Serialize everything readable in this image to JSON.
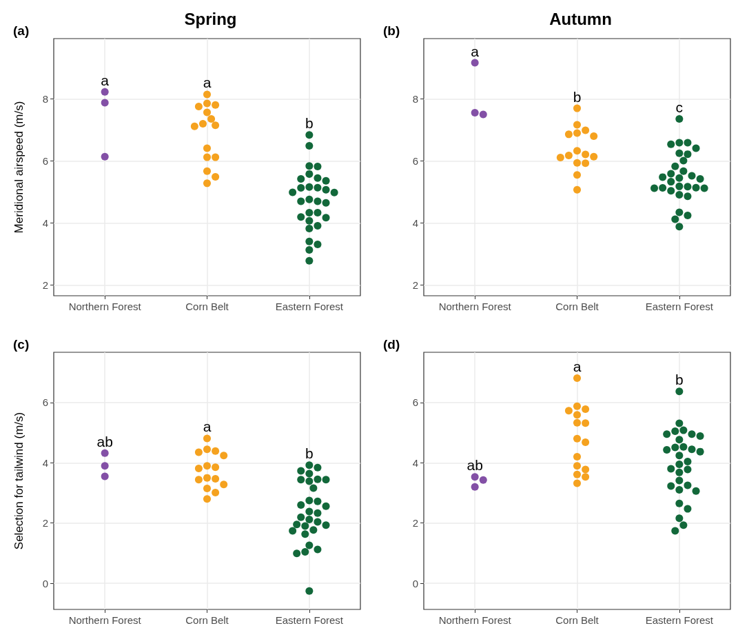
{
  "chart_data": [
    {
      "type": "scatter",
      "title": "Spring",
      "subtitle": "(a)",
      "ylabel": "Meridional airspeed (m/s)",
      "categories": [
        "Northern Forest",
        "Corn Belt",
        "Eastern Forest"
      ],
      "ylim": [
        1.65,
        9.95
      ],
      "yticks": [
        2,
        4,
        6,
        8
      ],
      "grid": true,
      "marker": "circle",
      "series": [
        {
          "color": "#8350a6",
          "x": [
            "Northern Forest",
            "Northern Forest",
            "Northern Forest"
          ],
          "values": [
            8.23,
            7.88,
            6.14
          ]
        },
        {
          "color": "#f5a21f",
          "x": [
            "Corn Belt",
            "Corn Belt",
            "Corn Belt",
            "Corn Belt",
            "Corn Belt",
            "Corn Belt",
            "Corn Belt",
            "Corn Belt",
            "Corn Belt",
            "Corn Belt",
            "Corn Belt",
            "Corn Belt",
            "Corn Belt",
            "Corn Belt",
            "Corn Belt"
          ],
          "values": [
            8.15,
            7.86,
            7.81,
            7.76,
            7.57,
            7.36,
            7.2,
            7.12,
            7.15,
            6.41,
            6.12,
            6.12,
            5.67,
            5.49,
            5.28
          ]
        },
        {
          "color": "#12683a",
          "x": [
            "Eastern Forest",
            "Eastern Forest",
            "Eastern Forest",
            "Eastern Forest",
            "Eastern Forest",
            "Eastern Forest",
            "Eastern Forest",
            "Eastern Forest",
            "Eastern Forest",
            "Eastern Forest",
            "Eastern Forest",
            "Eastern Forest",
            "Eastern Forest",
            "Eastern Forest",
            "Eastern Forest",
            "Eastern Forest",
            "Eastern Forest",
            "Eastern Forest",
            "Eastern Forest",
            "Eastern Forest",
            "Eastern Forest",
            "Eastern Forest",
            "Eastern Forest",
            "Eastern Forest",
            "Eastern Forest",
            "Eastern Forest",
            "Eastern Forest",
            "Eastern Forest",
            "Eastern Forest"
          ],
          "values": [
            6.84,
            6.49,
            5.82,
            5.84,
            5.58,
            5.45,
            5.36,
            5.42,
            5.16,
            5.13,
            5.07,
            4.98,
            4.99,
            5.14,
            4.7,
            4.65,
            4.7,
            4.76,
            4.33,
            4.33,
            4.07,
            4.17,
            4.19,
            3.82,
            3.91,
            3.4,
            3.31,
            3.13,
            2.78
          ]
        }
      ],
      "annotations": [
        "a",
        "a",
        "b"
      ]
    },
    {
      "type": "scatter",
      "title": "Autumn",
      "subtitle": "(b)",
      "categories": [
        "Northern Forest",
        "Corn Belt",
        "Eastern Forest"
      ],
      "ylim": [
        1.65,
        9.95
      ],
      "yticks": [
        2,
        4,
        6,
        8
      ],
      "grid": true,
      "marker": "circle",
      "series": [
        {
          "color": "#8350a6",
          "x": [
            "Northern Forest",
            "Northern Forest",
            "Northern Forest"
          ],
          "values": [
            9.17,
            7.5,
            7.56
          ]
        },
        {
          "color": "#f5a21f",
          "x": [
            "Corn Belt",
            "Corn Belt",
            "Corn Belt",
            "Corn Belt",
            "Corn Belt",
            "Corn Belt",
            "Corn Belt",
            "Corn Belt",
            "Corn Belt",
            "Corn Belt",
            "Corn Belt",
            "Corn Belt",
            "Corn Belt",
            "Corn Belt",
            "Corn Belt"
          ],
          "values": [
            7.7,
            7.17,
            6.9,
            6.8,
            6.86,
            6.99,
            6.18,
            6.11,
            6.21,
            6.14,
            6.33,
            5.93,
            5.94,
            5.55,
            5.07
          ]
        },
        {
          "color": "#12683a",
          "x": [
            "Eastern Forest",
            "Eastern Forest",
            "Eastern Forest",
            "Eastern Forest",
            "Eastern Forest",
            "Eastern Forest",
            "Eastern Forest",
            "Eastern Forest",
            "Eastern Forest",
            "Eastern Forest",
            "Eastern Forest",
            "Eastern Forest",
            "Eastern Forest",
            "Eastern Forest",
            "Eastern Forest",
            "Eastern Forest",
            "Eastern Forest",
            "Eastern Forest",
            "Eastern Forest",
            "Eastern Forest",
            "Eastern Forest",
            "Eastern Forest",
            "Eastern Forest",
            "Eastern Forest",
            "Eastern Forest",
            "Eastern Forest",
            "Eastern Forest",
            "Eastern Forest",
            "Eastern Forest"
          ],
          "values": [
            7.36,
            6.59,
            6.54,
            6.59,
            6.41,
            6.22,
            6.25,
            6.01,
            5.83,
            5.59,
            5.67,
            5.52,
            5.45,
            5.42,
            5.48,
            5.33,
            5.17,
            5.13,
            5.12,
            5.04,
            5.12,
            5.14,
            5.18,
            4.86,
            4.91,
            4.34,
            4.24,
            4.12,
            3.88
          ]
        }
      ],
      "annotations": [
        "a",
        "b",
        "c"
      ]
    },
    {
      "type": "scatter",
      "subtitle": "(c)",
      "ylabel": "Selection for tailwind (m/s)",
      "categories": [
        "Northern Forest",
        "Corn Belt",
        "Eastern Forest"
      ],
      "ylim": [
        -0.87,
        7.67
      ],
      "yticks": [
        0,
        2,
        4,
        6
      ],
      "grid": true,
      "marker": "circle",
      "series": [
        {
          "color": "#8350a6",
          "x": [
            "Northern Forest",
            "Northern Forest",
            "Northern Forest"
          ],
          "values": [
            4.32,
            3.9,
            3.55
          ]
        },
        {
          "color": "#f5a21f",
          "x": [
            "Corn Belt",
            "Corn Belt",
            "Corn Belt",
            "Corn Belt",
            "Corn Belt",
            "Corn Belt",
            "Corn Belt",
            "Corn Belt",
            "Corn Belt",
            "Corn Belt",
            "Corn Belt",
            "Corn Belt",
            "Corn Belt",
            "Corn Belt",
            "Corn Belt"
          ],
          "values": [
            4.81,
            4.45,
            4.39,
            4.24,
            4.35,
            3.9,
            3.81,
            3.85,
            3.5,
            3.44,
            3.47,
            3.28,
            3.15,
            3.01,
            2.8
          ]
        },
        {
          "color": "#12683a",
          "x": [
            "Eastern Forest",
            "Eastern Forest",
            "Eastern Forest",
            "Eastern Forest",
            "Eastern Forest",
            "Eastern Forest",
            "Eastern Forest",
            "Eastern Forest",
            "Eastern Forest",
            "Eastern Forest",
            "Eastern Forest",
            "Eastern Forest",
            "Eastern Forest",
            "Eastern Forest",
            "Eastern Forest",
            "Eastern Forest",
            "Eastern Forest",
            "Eastern Forest",
            "Eastern Forest",
            "Eastern Forest",
            "Eastern Forest",
            "Eastern Forest",
            "Eastern Forest",
            "Eastern Forest",
            "Eastern Forest",
            "Eastern Forest",
            "Eastern Forest",
            "Eastern Forest",
            "Eastern Forest"
          ],
          "values": [
            3.92,
            3.73,
            3.84,
            3.64,
            3.44,
            3.44,
            3.39,
            3.45,
            3.16,
            2.6,
            2.56,
            2.72,
            2.75,
            2.33,
            2.38,
            2.12,
            1.95,
            1.9,
            2.04,
            2.19,
            1.77,
            1.63,
            1.74,
            1.93,
            1.12,
            0.99,
            1.04,
            1.26,
            -0.26
          ]
        }
      ],
      "annotations": [
        "ab",
        "a",
        "b"
      ]
    },
    {
      "type": "scatter",
      "subtitle": "(d)",
      "categories": [
        "Northern Forest",
        "Corn Belt",
        "Eastern Forest"
      ],
      "ylim": [
        -0.87,
        7.67
      ],
      "yticks": [
        0,
        2,
        4,
        6
      ],
      "grid": true,
      "marker": "circle",
      "series": [
        {
          "color": "#8350a6",
          "x": [
            "Northern Forest",
            "Northern Forest",
            "Northern Forest"
          ],
          "values": [
            3.53,
            3.43,
            3.2
          ]
        },
        {
          "color": "#f5a21f",
          "x": [
            "Corn Belt",
            "Corn Belt",
            "Corn Belt",
            "Corn Belt",
            "Corn Belt",
            "Corn Belt",
            "Corn Belt",
            "Corn Belt",
            "Corn Belt",
            "Corn Belt",
            "Corn Belt",
            "Corn Belt",
            "Corn Belt",
            "Corn Belt",
            "Corn Belt"
          ],
          "values": [
            6.81,
            5.88,
            5.73,
            5.59,
            5.78,
            5.32,
            5.33,
            4.8,
            4.68,
            4.2,
            3.9,
            3.78,
            3.61,
            3.53,
            3.32
          ]
        },
        {
          "color": "#12683a",
          "x": [
            "Eastern Forest",
            "Eastern Forest",
            "Eastern Forest",
            "Eastern Forest",
            "Eastern Forest",
            "Eastern Forest",
            "Eastern Forest",
            "Eastern Forest",
            "Eastern Forest",
            "Eastern Forest",
            "Eastern Forest",
            "Eastern Forest",
            "Eastern Forest",
            "Eastern Forest",
            "Eastern Forest",
            "Eastern Forest",
            "Eastern Forest",
            "Eastern Forest",
            "Eastern Forest",
            "Eastern Forest",
            "Eastern Forest",
            "Eastern Forest",
            "Eastern Forest",
            "Eastern Forest",
            "Eastern Forest",
            "Eastern Forest",
            "Eastern Forest",
            "Eastern Forest",
            "Eastern Forest"
          ],
          "values": [
            6.37,
            5.31,
            5.08,
            4.95,
            4.95,
            4.89,
            5.05,
            4.77,
            4.51,
            4.43,
            4.37,
            4.24,
            4.45,
            4.53,
            4.04,
            3.95,
            3.78,
            3.68,
            3.8,
            3.41,
            3.25,
            3.23,
            3.06,
            3.1,
            2.65,
            2.47,
            2.16,
            1.93,
            1.74
          ]
        }
      ],
      "annotations": [
        "ab",
        "a",
        "b"
      ]
    }
  ]
}
